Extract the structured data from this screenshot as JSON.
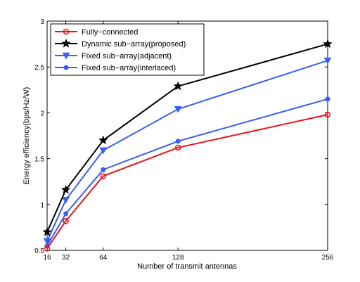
{
  "chart_data": {
    "type": "line",
    "xlabel": "Number of transmit antennas",
    "ylabel": "Energy efficiency(bps/Hz/W)",
    "xlim": [
      16,
      256
    ],
    "ylim": [
      0.5,
      3
    ],
    "xticks": [
      16,
      32,
      64,
      128,
      256
    ],
    "yticks": [
      0.5,
      1,
      1.5,
      2,
      2.5,
      3
    ],
    "ytick_labels": [
      "0.5",
      "1",
      "1.5",
      "2",
      "2.5",
      "3"
    ],
    "grid": false,
    "legend_position": "top-left",
    "x": [
      16,
      32,
      64,
      128,
      256
    ],
    "series": [
      {
        "name": "Fully−connected",
        "color": "#e8141c",
        "marker": "circle",
        "values": [
          0.52,
          0.82,
          1.31,
          1.62,
          1.98
        ]
      },
      {
        "name": "Dynamic sub−array(proposed)",
        "color": "#000000",
        "marker": "star",
        "values": [
          0.7,
          1.16,
          1.7,
          2.29,
          2.75
        ]
      },
      {
        "name": "Fixed sub−array(adjacent)",
        "color": "#3a5ff0",
        "marker": "triangle-down",
        "values": [
          0.6,
          1.05,
          1.59,
          2.04,
          2.57
        ]
      },
      {
        "name": "Fixed sub−array(interlaced)",
        "color": "#3a5ff0",
        "marker": "dot",
        "values": [
          0.55,
          0.9,
          1.38,
          1.69,
          2.15
        ]
      }
    ]
  }
}
